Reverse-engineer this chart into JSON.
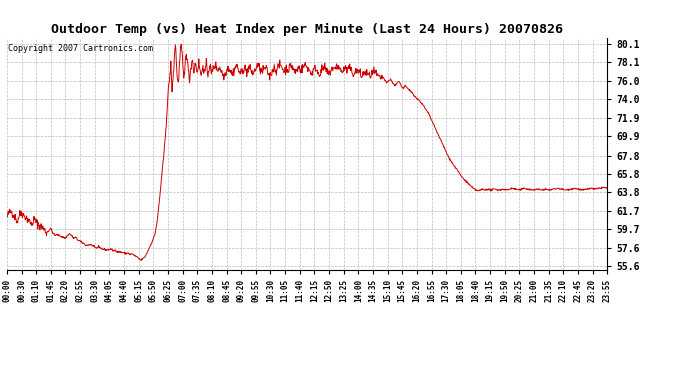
{
  "title": "Outdoor Temp (vs) Heat Index per Minute (Last 24 Hours) 20070826",
  "copyright": "Copyright 2007 Cartronics.com",
  "line_color": "#cc0000",
  "background_color": "#ffffff",
  "grid_color": "#bbbbbb",
  "yticks": [
    55.6,
    57.6,
    59.7,
    61.7,
    63.8,
    65.8,
    67.8,
    69.9,
    71.9,
    74.0,
    76.0,
    78.1,
    80.1
  ],
  "ylim": [
    55.2,
    80.8
  ],
  "xtick_labels": [
    "00:00",
    "00:30",
    "01:10",
    "01:45",
    "02:20",
    "02:55",
    "03:30",
    "04:05",
    "04:40",
    "05:15",
    "05:50",
    "06:25",
    "07:00",
    "07:35",
    "08:10",
    "08:45",
    "09:20",
    "09:55",
    "10:30",
    "11:05",
    "11:40",
    "12:15",
    "12:50",
    "13:25",
    "14:00",
    "14:35",
    "15:10",
    "15:45",
    "16:20",
    "16:55",
    "17:30",
    "18:05",
    "18:40",
    "19:15",
    "19:50",
    "20:25",
    "21:00",
    "21:35",
    "22:10",
    "22:45",
    "23:20",
    "23:55"
  ],
  "num_points": 1440,
  "curve_data": [
    [
      0,
      61.0
    ],
    [
      5,
      61.5
    ],
    [
      10,
      61.7
    ],
    [
      15,
      61.3
    ],
    [
      20,
      61.0
    ],
    [
      25,
      60.5
    ],
    [
      30,
      61.3
    ],
    [
      35,
      61.5
    ],
    [
      45,
      61.0
    ],
    [
      50,
      60.8
    ],
    [
      55,
      60.5
    ],
    [
      60,
      60.2
    ],
    [
      65,
      60.8
    ],
    [
      70,
      60.5
    ],
    [
      80,
      60.0
    ],
    [
      85,
      59.9
    ],
    [
      90,
      59.6
    ],
    [
      95,
      59.3
    ],
    [
      100,
      59.5
    ],
    [
      105,
      59.8
    ],
    [
      110,
      59.3
    ],
    [
      115,
      59.0
    ],
    [
      120,
      59.1
    ],
    [
      130,
      58.9
    ],
    [
      140,
      58.7
    ],
    [
      145,
      59.0
    ],
    [
      150,
      59.2
    ],
    [
      155,
      59.0
    ],
    [
      160,
      58.7
    ],
    [
      165,
      58.8
    ],
    [
      170,
      58.5
    ],
    [
      175,
      58.4
    ],
    [
      180,
      58.2
    ],
    [
      185,
      58.1
    ],
    [
      190,
      57.9
    ],
    [
      200,
      58.0
    ],
    [
      205,
      57.9
    ],
    [
      210,
      57.7
    ],
    [
      215,
      57.6
    ],
    [
      220,
      57.8
    ],
    [
      225,
      57.6
    ],
    [
      230,
      57.5
    ],
    [
      240,
      57.4
    ],
    [
      250,
      57.5
    ],
    [
      255,
      57.3
    ],
    [
      260,
      57.4
    ],
    [
      265,
      57.2
    ],
    [
      270,
      57.2
    ],
    [
      280,
      57.1
    ],
    [
      285,
      57.0
    ],
    [
      290,
      57.1
    ],
    [
      295,
      56.9
    ],
    [
      300,
      57.0
    ],
    [
      305,
      56.8
    ],
    [
      310,
      56.7
    ],
    [
      315,
      56.5
    ],
    [
      318,
      56.4
    ],
    [
      320,
      56.3
    ],
    [
      322,
      56.3
    ],
    [
      330,
      56.6
    ],
    [
      335,
      57.0
    ],
    [
      340,
      57.5
    ],
    [
      345,
      58.0
    ],
    [
      350,
      58.5
    ],
    [
      355,
      59.2
    ],
    [
      360,
      60.5
    ],
    [
      365,
      62.5
    ],
    [
      370,
      65.0
    ],
    [
      373,
      66.5
    ],
    [
      376,
      67.8
    ],
    [
      379,
      69.5
    ],
    [
      382,
      71.5
    ],
    [
      385,
      73.5
    ],
    [
      388,
      75.5
    ],
    [
      391,
      76.8
    ],
    [
      393,
      77.8
    ],
    [
      394,
      76.5
    ],
    [
      396,
      75.2
    ],
    [
      398,
      76.0
    ],
    [
      400,
      77.5
    ],
    [
      402,
      79.2
    ],
    [
      404,
      80.1
    ],
    [
      406,
      78.5
    ],
    [
      408,
      76.5
    ],
    [
      410,
      75.8
    ],
    [
      412,
      76.5
    ],
    [
      414,
      78.0
    ],
    [
      416,
      79.5
    ],
    [
      418,
      79.8
    ],
    [
      420,
      78.8
    ],
    [
      422,
      77.5
    ],
    [
      424,
      76.2
    ],
    [
      426,
      77.0
    ],
    [
      428,
      78.5
    ],
    [
      430,
      79.2
    ],
    [
      432,
      78.5
    ],
    [
      434,
      77.5
    ],
    [
      436,
      76.8
    ],
    [
      438,
      76.2
    ],
    [
      440,
      77.0
    ],
    [
      442,
      77.8
    ],
    [
      444,
      78.5
    ],
    [
      446,
      77.8
    ],
    [
      448,
      77.0
    ],
    [
      450,
      77.5
    ],
    [
      452,
      78.0
    ],
    [
      454,
      77.5
    ],
    [
      456,
      77.0
    ],
    [
      458,
      77.5
    ],
    [
      460,
      78.0
    ],
    [
      462,
      77.5
    ],
    [
      464,
      77.0
    ],
    [
      466,
      76.5
    ],
    [
      468,
      77.2
    ],
    [
      470,
      77.8
    ],
    [
      472,
      77.2
    ],
    [
      474,
      76.8
    ],
    [
      476,
      77.5
    ],
    [
      478,
      77.8
    ],
    [
      480,
      77.2
    ],
    [
      482,
      76.8
    ],
    [
      484,
      77.2
    ],
    [
      486,
      77.8
    ],
    [
      488,
      77.5
    ],
    [
      490,
      76.8
    ],
    [
      495,
      77.5
    ],
    [
      500,
      77.8
    ],
    [
      505,
      77.2
    ],
    [
      510,
      77.5
    ],
    [
      515,
      77.0
    ],
    [
      520,
      76.5
    ],
    [
      525,
      77.0
    ],
    [
      530,
      77.5
    ],
    [
      535,
      77.2
    ],
    [
      540,
      76.8
    ],
    [
      545,
      77.2
    ],
    [
      550,
      77.8
    ],
    [
      555,
      77.2
    ],
    [
      560,
      76.8
    ],
    [
      565,
      77.2
    ],
    [
      570,
      77.5
    ],
    [
      575,
      77.0
    ],
    [
      580,
      77.5
    ],
    [
      585,
      77.2
    ],
    [
      590,
      76.8
    ],
    [
      595,
      77.2
    ],
    [
      600,
      77.8
    ],
    [
      605,
      77.5
    ],
    [
      610,
      77.0
    ],
    [
      615,
      77.2
    ],
    [
      620,
      77.5
    ],
    [
      625,
      77.0
    ],
    [
      630,
      76.5
    ],
    [
      635,
      77.0
    ],
    [
      640,
      77.5
    ],
    [
      645,
      77.2
    ],
    [
      650,
      77.5
    ],
    [
      655,
      77.8
    ],
    [
      660,
      77.5
    ],
    [
      665,
      77.0
    ],
    [
      670,
      77.5
    ],
    [
      675,
      77.2
    ],
    [
      680,
      77.8
    ],
    [
      685,
      77.5
    ],
    [
      690,
      77.0
    ],
    [
      695,
      77.2
    ],
    [
      700,
      77.5
    ],
    [
      705,
      77.2
    ],
    [
      710,
      77.5
    ],
    [
      715,
      77.8
    ],
    [
      720,
      77.5
    ],
    [
      725,
      77.2
    ],
    [
      730,
      76.8
    ],
    [
      735,
      77.2
    ],
    [
      740,
      77.5
    ],
    [
      745,
      77.0
    ],
    [
      750,
      76.8
    ],
    [
      755,
      77.2
    ],
    [
      760,
      77.5
    ],
    [
      765,
      77.2
    ],
    [
      770,
      76.8
    ],
    [
      775,
      77.0
    ],
    [
      780,
      77.5
    ],
    [
      785,
      77.2
    ],
    [
      790,
      77.8
    ],
    [
      795,
      77.5
    ],
    [
      800,
      77.2
    ],
    [
      805,
      77.0
    ],
    [
      810,
      77.5
    ],
    [
      815,
      77.2
    ],
    [
      820,
      77.5
    ],
    [
      825,
      77.2
    ],
    [
      830,
      76.8
    ],
    [
      835,
      77.0
    ],
    [
      840,
      77.2
    ],
    [
      845,
      77.0
    ],
    [
      850,
      76.5
    ],
    [
      855,
      76.8
    ],
    [
      860,
      77.0
    ],
    [
      865,
      76.8
    ],
    [
      870,
      76.5
    ],
    [
      875,
      76.8
    ],
    [
      880,
      77.0
    ],
    [
      885,
      76.8
    ],
    [
      890,
      76.5
    ],
    [
      895,
      76.2
    ],
    [
      900,
      76.5
    ],
    [
      905,
      76.2
    ],
    [
      910,
      75.8
    ],
    [
      915,
      76.0
    ],
    [
      920,
      76.2
    ],
    [
      925,
      75.8
    ],
    [
      930,
      75.5
    ],
    [
      935,
      75.8
    ],
    [
      940,
      76.0
    ],
    [
      945,
      75.5
    ],
    [
      950,
      75.2
    ],
    [
      955,
      75.5
    ],
    [
      960,
      75.2
    ],
    [
      965,
      75.0
    ],
    [
      970,
      74.8
    ],
    [
      975,
      74.5
    ],
    [
      980,
      74.2
    ],
    [
      985,
      74.0
    ],
    [
      990,
      73.8
    ],
    [
      995,
      73.5
    ],
    [
      1000,
      73.2
    ],
    [
      1005,
      72.8
    ],
    [
      1010,
      72.5
    ],
    [
      1015,
      72.0
    ],
    [
      1020,
      71.5
    ],
    [
      1025,
      71.0
    ],
    [
      1030,
      70.5
    ],
    [
      1035,
      70.0
    ],
    [
      1040,
      69.5
    ],
    [
      1045,
      69.0
    ],
    [
      1050,
      68.5
    ],
    [
      1055,
      68.0
    ],
    [
      1060,
      67.5
    ],
    [
      1065,
      67.2
    ],
    [
      1070,
      66.8
    ],
    [
      1075,
      66.5
    ],
    [
      1080,
      66.2
    ],
    [
      1085,
      65.8
    ],
    [
      1090,
      65.5
    ],
    [
      1095,
      65.2
    ],
    [
      1100,
      65.0
    ],
    [
      1105,
      64.8
    ],
    [
      1110,
      64.5
    ],
    [
      1115,
      64.3
    ],
    [
      1120,
      64.1
    ],
    [
      1125,
      64.0
    ],
    [
      1130,
      63.9
    ],
    [
      1135,
      64.0
    ],
    [
      1140,
      64.1
    ],
    [
      1145,
      64.0
    ],
    [
      1150,
      64.1
    ],
    [
      1160,
      64.0
    ],
    [
      1170,
      64.1
    ],
    [
      1180,
      64.0
    ],
    [
      1190,
      64.1
    ],
    [
      1200,
      64.0
    ],
    [
      1210,
      64.2
    ],
    [
      1220,
      64.1
    ],
    [
      1230,
      64.0
    ],
    [
      1240,
      64.2
    ],
    [
      1250,
      64.1
    ],
    [
      1260,
      64.0
    ],
    [
      1270,
      64.1
    ],
    [
      1280,
      64.0
    ],
    [
      1290,
      64.1
    ],
    [
      1300,
      64.0
    ],
    [
      1310,
      64.1
    ],
    [
      1320,
      64.2
    ],
    [
      1330,
      64.1
    ],
    [
      1340,
      64.0
    ],
    [
      1350,
      64.1
    ],
    [
      1360,
      64.2
    ],
    [
      1370,
      64.1
    ],
    [
      1380,
      64.0
    ],
    [
      1390,
      64.1
    ],
    [
      1400,
      64.2
    ],
    [
      1410,
      64.1
    ],
    [
      1420,
      64.2
    ],
    [
      1430,
      64.3
    ],
    [
      1439,
      64.2
    ]
  ]
}
